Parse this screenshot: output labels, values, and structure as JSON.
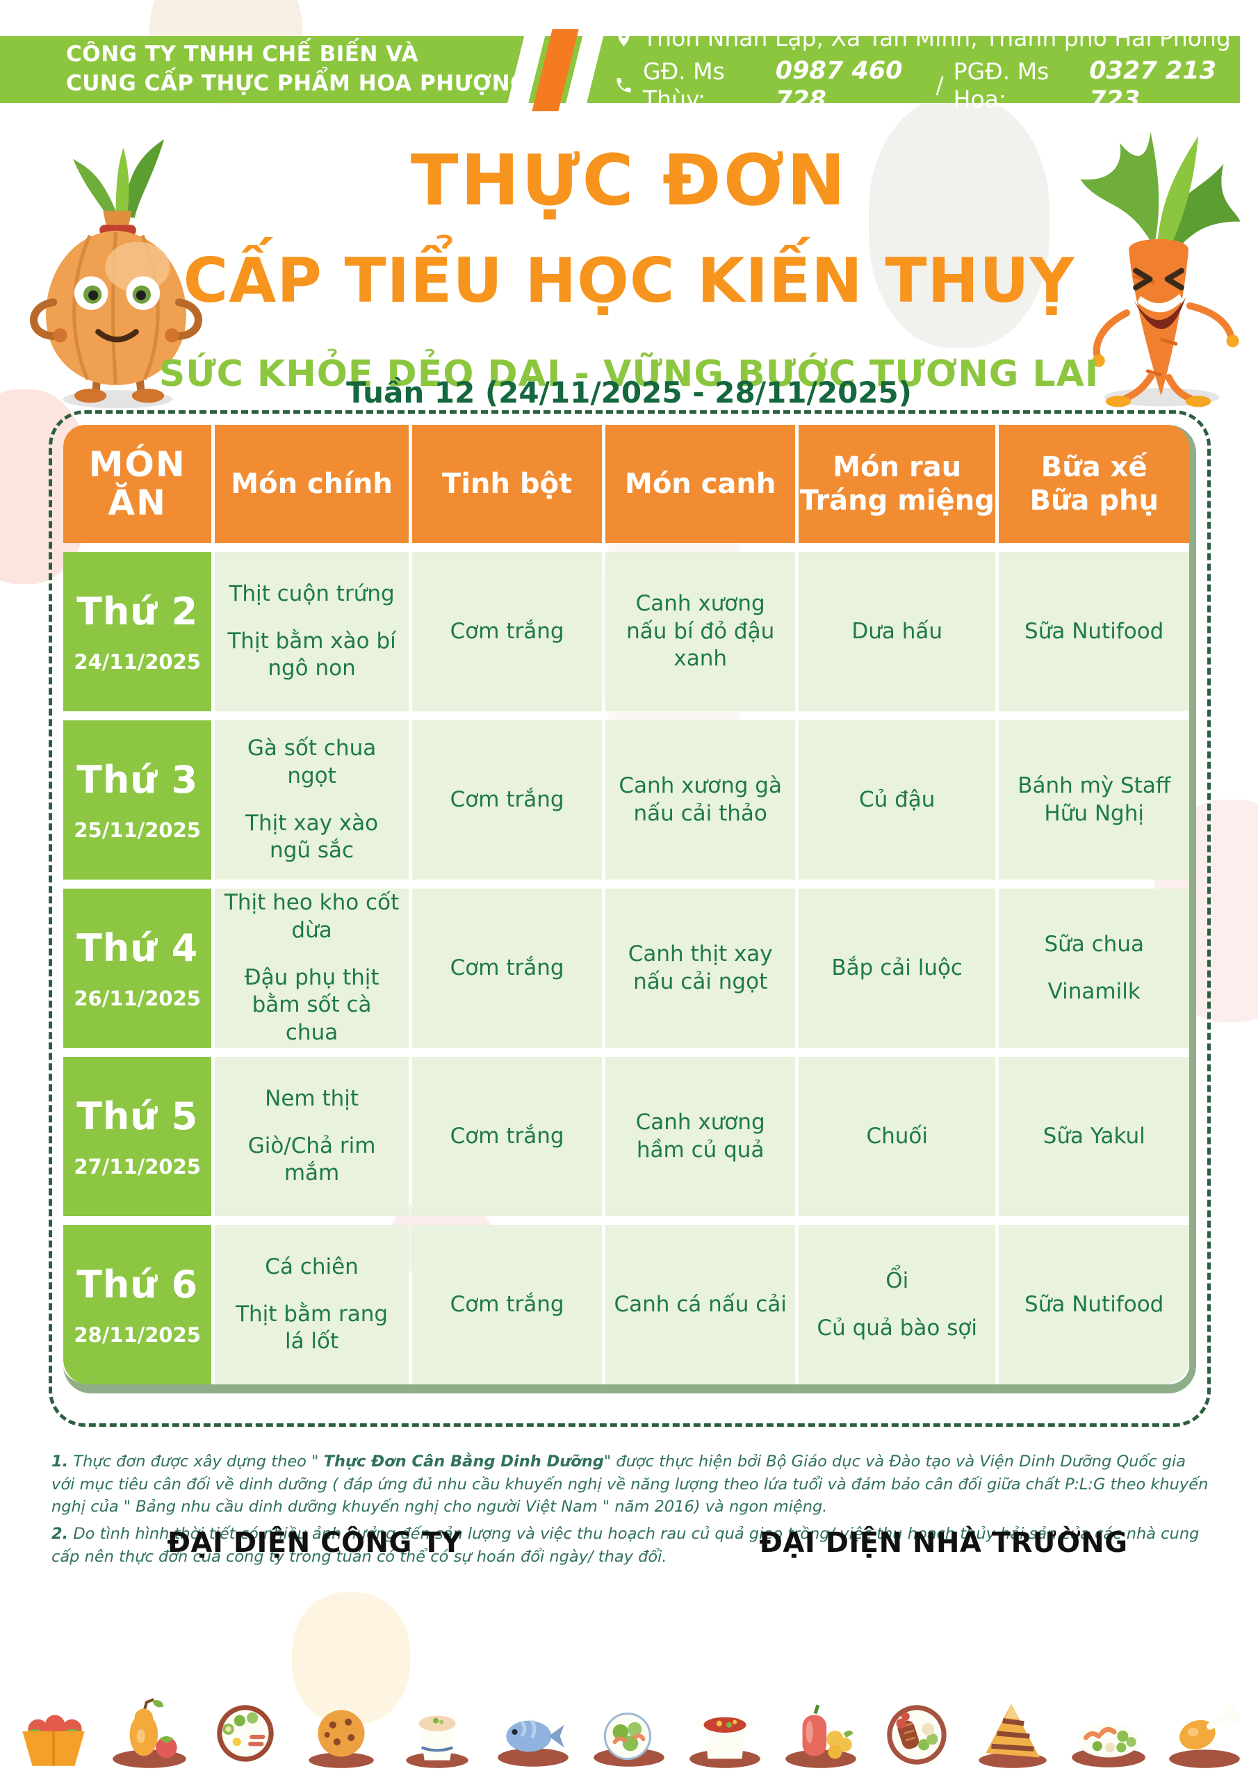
{
  "header": {
    "company_line1": "CÔNG TY TNHH CHẾ BIẾN VÀ",
    "company_line2": "CUNG CẤP THỰC PHẨM HOA PHƯỢNG",
    "address": "Thôn Nhân Lập, Xã Tân Minh, Thành phố Hải Phòng",
    "phone_label1": "GĐ. Ms Thùy:",
    "phone_number1": "0987 460 728",
    "phone_sep": "/",
    "phone_label2": "PGĐ. Ms Hoa:",
    "phone_number2": "0327 213 723"
  },
  "title": {
    "line1": "THỰC ĐƠN",
    "line2": "CẤP TIỂU HỌC KIẾN THUỴ",
    "subtitle": "SỨC KHỎE DẺO DAI - VỮNG BƯỚC TƯƠNG LAI",
    "week": "Tuần 12 (24/11/2025 - 28/11/2025)"
  },
  "table": {
    "columns": [
      [
        "MÓN",
        "ĂN"
      ],
      [
        "Món chính"
      ],
      [
        "Tinh bột"
      ],
      [
        "Món canh"
      ],
      [
        "Món rau",
        "Tráng miệng"
      ],
      [
        "Bữa xế",
        "Bữa phụ"
      ]
    ],
    "rows": [
      {
        "day": "Thứ 2",
        "date": "24/11/2025",
        "main": [
          "Thịt cuộn trứng",
          "Thịt bằm xào bí ngô non"
        ],
        "starch": [
          "Cơm trắng"
        ],
        "soup": [
          "Canh xương nấu bí đỏ đậu xanh"
        ],
        "veg": [
          "Dưa hấu"
        ],
        "snack": [
          "Sữa Nutifood"
        ]
      },
      {
        "day": "Thứ 3",
        "date": "25/11/2025",
        "main": [
          "Gà sốt chua ngọt",
          "Thịt xay xào ngũ sắc"
        ],
        "starch": [
          "Cơm trắng"
        ],
        "soup": [
          "Canh xương gà nấu cải thảo"
        ],
        "veg": [
          "Củ đậu"
        ],
        "snack": [
          "Bánh mỳ Staff Hữu Nghị"
        ]
      },
      {
        "day": "Thứ 4",
        "date": "26/11/2025",
        "main": [
          "Thịt heo kho cốt dừa",
          "Đậu phụ thịt bằm sốt cà chua"
        ],
        "starch": [
          "Cơm trắng"
        ],
        "soup": [
          "Canh thịt xay nấu cải ngọt"
        ],
        "veg": [
          "Bắp cải luộc"
        ],
        "snack": [
          "Sữa chua",
          "Vinamilk"
        ]
      },
      {
        "day": "Thứ 5",
        "date": "27/11/2025",
        "main": [
          "Nem thịt",
          "Giò/Chả rim mắm"
        ],
        "starch": [
          "Cơm trắng"
        ],
        "soup": [
          "Canh xương hầm củ quả"
        ],
        "veg": [
          "Chuối"
        ],
        "snack": [
          "Sữa Yakul"
        ]
      },
      {
        "day": "Thứ 6",
        "date": "28/11/2025",
        "main": [
          "Cá chiên",
          "Thịt bằm rang lá lốt"
        ],
        "starch": [
          "Cơm trắng"
        ],
        "soup": [
          "Canh cá nấu cải"
        ],
        "veg": [
          "Ổi",
          "Củ quả bào sợi"
        ],
        "snack": [
          "Sữa Nutifood"
        ]
      }
    ]
  },
  "notes": [
    {
      "num": "1.",
      "before": "Thực đơn được xây dựng theo \" ",
      "bold": "Thực Đơn Cân Bằng Dinh Dưỡng",
      "after": "\" được thực hiện bởi Bộ Giáo dục và Đào tạo và Viện Dinh Dưỡng Quốc gia với mục tiêu cân đối về dinh dưỡng ( đáp ứng đủ nhu cầu khuyến nghị về năng lượng theo lứa tuổi và đảm bảo cân đối giữa chất P:L:G theo khuyến nghị của \" Bảng nhu cầu dinh dưỡng khuyến nghị cho người Việt Nam \" năm 2016) và ngon miệng."
    },
    {
      "num": "2.",
      "before": "",
      "bold": "",
      "after": "Do tình hình thời tiết có nhiều ảnh hưởng đến sản lượng và việc thu hoạch rau củ quả gieo trồng/ việc thu hoạch thủy hải sản của các nhà cung cấp nên thực đơn của công ty trong tuần có thể có sự hoán đổi ngày/ thay đổi."
    }
  ],
  "signatures": {
    "company": "ĐẠI DIỆN CÔNG TY",
    "school": "ĐẠI DIỆN NHÀ TRƯỜNG"
  },
  "footer_icons": [
    "tomato-basket-icon",
    "pear-strawberry-icon",
    "breakfast-plate-icon",
    "cookie-icon",
    "soup-cup-icon",
    "fish-dish-icon",
    "shrimp-salad-icon",
    "soup-pot-icon",
    "pepper-corn-icon",
    "grilled-meat-plate-icon",
    "waffle-icon",
    "seafood-platter-icon",
    "chicken-drumstick-icon"
  ],
  "colors": {
    "green": "#8CC63E",
    "orange-stripe": "#F47B20",
    "title-orange": "#F7941E",
    "subtitle-green": "#8CC63F",
    "week-green": "#15673F",
    "header-orange": "#F28C33",
    "day-green": "#8CC642",
    "cell-bg": "#E9F2DC",
    "cell-text": "#1E7A46",
    "dash-green": "#2C5F3F",
    "sage": "#8FAE88",
    "note-green": "#2F7258",
    "signature-black": "#111111",
    "plate-brown": "#A65440"
  }
}
